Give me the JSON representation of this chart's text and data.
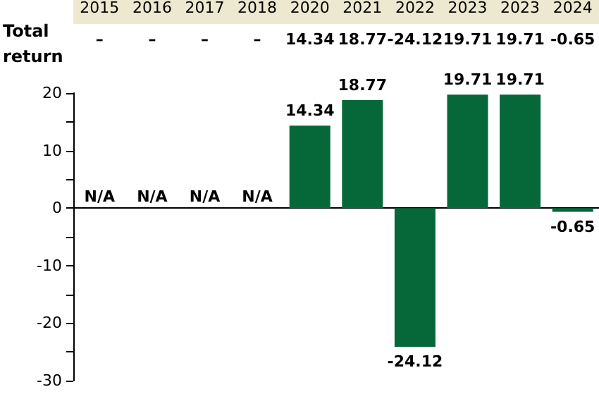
{
  "chart_data": {
    "type": "bar",
    "categories": [
      "2015",
      "2016",
      "2017",
      "2018",
      "2020",
      "2021",
      "2022",
      "2023",
      "2023",
      "2024"
    ],
    "values": [
      null,
      null,
      null,
      null,
      14.34,
      18.77,
      -24.12,
      19.71,
      19.71,
      -0.65
    ],
    "color": "#066838",
    "value_labels": [
      "N/A",
      "N/A",
      "N/A",
      "N/A",
      "14.34",
      "18.77",
      "-24.12",
      "19.71",
      "19.71",
      "-0.65"
    ],
    "annotations": [
      "Total return",
      "–"
    ],
    "ylim": [
      -30,
      20
    ],
    "yticks": [
      {
        "value": -30,
        "label": "-30"
      },
      {
        "value": -25,
        "label": null
      },
      {
        "value": -20,
        "label": "-20"
      },
      {
        "value": -15,
        "label": null
      },
      {
        "value": -10,
        "label": "-10"
      },
      {
        "value": -5,
        "label": null
      },
      0,
      {
        "value": 5,
        "label": null
      },
      10,
      {
        "value": 15,
        "label": null
      },
      20
    ]
  }
}
